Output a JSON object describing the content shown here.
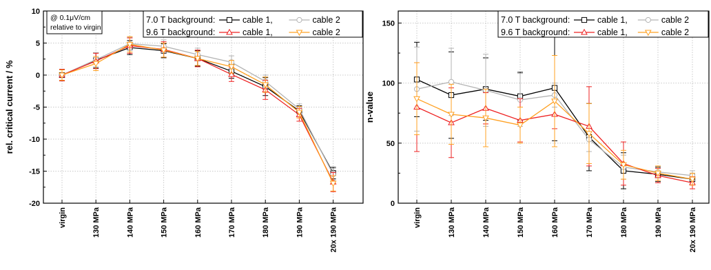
{
  "chart_data": [
    {
      "type": "line",
      "ylabel": "rel. critical current / %",
      "xlabel": "",
      "ylim": [
        -20,
        10
      ],
      "yticks": [
        -20,
        -15,
        -10,
        -5,
        0,
        5,
        10
      ],
      "categories": [
        "virgin",
        "130 MPa",
        "140 MPa",
        "150 MPa",
        "160 MPa",
        "170 MPa",
        "180 MPa",
        "190 MPa",
        "20x 190 MPa"
      ],
      "annotation_lines": [
        "@ 0.1μV/cm",
        "relative to virgin"
      ],
      "legend": {
        "row1_label": "7.0 T background:",
        "row2_label": "9.6 T background:",
        "placement": "top-right"
      },
      "grid": true,
      "series": [
        {
          "name": "cable 1,",
          "group": "7.0 T",
          "color": "#000000",
          "marker": "square",
          "values": [
            0,
            2.3,
            4.3,
            3.8,
            2.6,
            0.6,
            -1.8,
            -5.6,
            -15.3
          ],
          "errors": [
            0.9,
            1.2,
            1.1,
            1.1,
            1.2,
            1.1,
            1.4,
            0.8,
            0.9
          ]
        },
        {
          "name": "cable 2",
          "group": "7.0 T",
          "color": "#b3b3b3",
          "marker": "circle",
          "values": [
            0,
            2.4,
            4.9,
            4.5,
            3.2,
            2.0,
            -1.0,
            -5.3,
            -15.5
          ],
          "errors": [
            0.8,
            1.1,
            1.0,
            1.0,
            1.0,
            1.0,
            1.0,
            0.8,
            0.9
          ]
        },
        {
          "name": "cable 1,",
          "group": "9.6 T",
          "color": "#ee2222",
          "marker": "triangle-up",
          "values": [
            0,
            2.2,
            4.6,
            4.0,
            2.6,
            0.1,
            -2.3,
            -6.2,
            -16.7
          ],
          "errors": [
            0.9,
            1.2,
            1.2,
            1.2,
            1.3,
            1.1,
            1.5,
            1.0,
            1.5
          ]
        },
        {
          "name": "cable 2",
          "group": "9.6 T",
          "color": "#ffa020",
          "marker": "triangle-down",
          "values": [
            0,
            1.8,
            4.8,
            3.9,
            2.6,
            1.3,
            -1.5,
            -5.8,
            -16.9
          ],
          "errors": [
            0.8,
            1.1,
            1.2,
            1.1,
            1.1,
            1.0,
            1.2,
            0.9,
            1.2
          ]
        }
      ]
    },
    {
      "type": "line",
      "ylabel": "n-value",
      "xlabel": "",
      "ylim": [
        0,
        160
      ],
      "yticks": [
        0,
        50,
        100,
        150
      ],
      "categories": [
        "virgin",
        "130 MPa",
        "140 MPa",
        "150 MPa",
        "160 MPa",
        "170 MPa",
        "180 MPa",
        "190 MPa",
        "20x 190 MPa"
      ],
      "legend": {
        "row1_label": "7.0 T background:",
        "row2_label": "9.6 T background:",
        "placement": "top-right"
      },
      "grid": true,
      "series": [
        {
          "name": "cable 1,",
          "group": "7.0 T",
          "color": "#000000",
          "marker": "square",
          "values": [
            103,
            90,
            95,
            89,
            96,
            55,
            27,
            24,
            20
          ],
          "errors": [
            31,
            36,
            26,
            20,
            44,
            28,
            15,
            6,
            4
          ]
        },
        {
          "name": "cable 2",
          "group": "7.0 T",
          "color": "#b3b3b3",
          "marker": "circle",
          "values": [
            95,
            101,
            94,
            86,
            90,
            53,
            30,
            26,
            23
          ],
          "errors": [
            35,
            28,
            30,
            22,
            10,
            10,
            10,
            5,
            4
          ]
        },
        {
          "name": "cable 1,",
          "group": "9.6 T",
          "color": "#ee2222",
          "marker": "triangle-up",
          "values": [
            80,
            67,
            79,
            69,
            74,
            64,
            33,
            23,
            17
          ],
          "errors": [
            37,
            29,
            13,
            18,
            12,
            33,
            18,
            6,
            5
          ]
        },
        {
          "name": "cable 2",
          "group": "9.6 T",
          "color": "#ffa020",
          "marker": "triangle-down",
          "values": [
            87,
            74,
            71,
            65,
            85,
            58,
            32,
            25,
            20
          ],
          "errors": [
            30,
            25,
            24,
            15,
            38,
            25,
            12,
            6,
            5
          ]
        }
      ]
    }
  ]
}
